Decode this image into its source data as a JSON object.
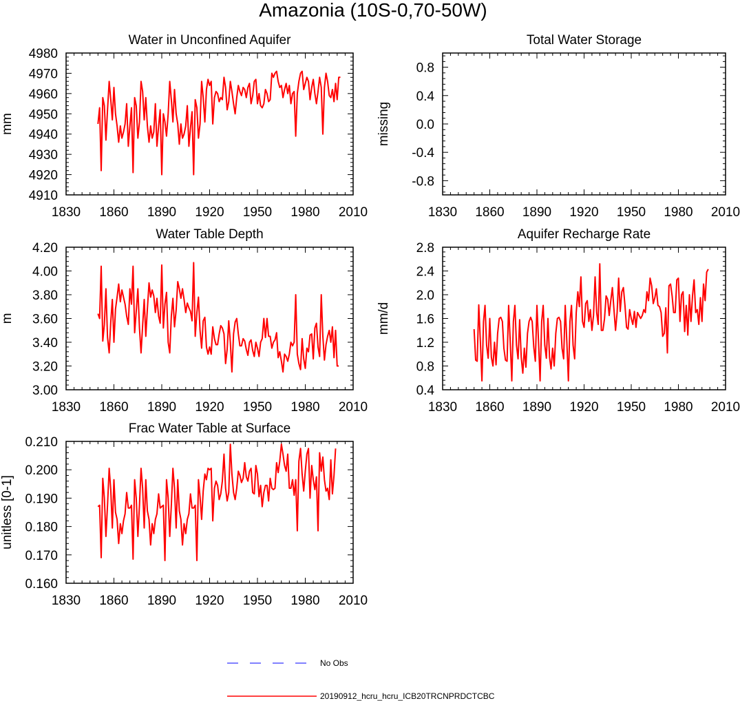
{
  "figure": {
    "title": "Amazonia (10S-0,70-50W)",
    "legend": [
      {
        "label": "No Obs",
        "color": "#0000ff",
        "style": "dashed"
      },
      {
        "label": "20190912_hcru_hcru_ICB20TRCNPRDCTCBC",
        "color": "#ff0000",
        "style": "solid"
      }
    ]
  },
  "chart_data": [
    {
      "type": "line",
      "title": "Water in Unconfined Aquifer",
      "ylabel": "mm",
      "xlim": [
        1830,
        2010
      ],
      "ylim": [
        4910,
        4980
      ],
      "xticks": [
        1830,
        1860,
        1890,
        1920,
        1950,
        1980,
        2010
      ],
      "xtick_labels": [
        "1830",
        "1860",
        "1890",
        "1920",
        "1950",
        "1980",
        "2010"
      ],
      "yticks": [
        4910,
        4920,
        4930,
        4940,
        4950,
        4960,
        4970,
        4980
      ],
      "ytick_labels": [
        "4910",
        "4920",
        "4930",
        "4940",
        "4950",
        "4960",
        "4970",
        "4980"
      ],
      "series": [
        {
          "name": "20190912_hcru_hcru_ICB20TRCNPRDCTCBC",
          "color": "#ff0000",
          "x_start": 1850,
          "values": [
            4945,
            4953,
            4922,
            4958,
            4954,
            4937,
            4952,
            4966,
            4957,
            4947,
            4963,
            4950,
            4944,
            4936,
            4944,
            4938,
            4941,
            4945,
            4955,
            4934,
            4944,
            4953,
            4921,
            4958,
            4954,
            4938,
            4946,
            4966,
            4961,
            4947,
            4958,
            4944,
            4936,
            4944,
            4938,
            4941,
            4955,
            4934,
            4944,
            4952,
            4920,
            4950,
            4946,
            4939,
            4950,
            4966,
            4957,
            4946,
            4962,
            4950,
            4945,
            4935,
            4945,
            4938,
            4940,
            4944,
            4954,
            4934,
            4943,
            4951,
            4920,
            4957,
            4953,
            4938,
            4945,
            4966,
            4958,
            4946,
            4962,
            4967,
            4964,
            4966,
            4945,
            4958,
            4961,
            4960,
            4956,
            4958,
            4957,
            4968,
            4963,
            4952,
            4956,
            4966,
            4961,
            4955,
            4950,
            4958,
            4964,
            4961,
            4959,
            4963,
            4962,
            4958,
            4963,
            4965,
            4955,
            4959,
            4966,
            4967,
            4955,
            4960,
            4954,
            4953,
            4955,
            4962,
            4960,
            4956,
            4957,
            4970,
            4968,
            4970,
            4971,
            4966,
            4963,
            4964,
            4958,
            4962,
            4965,
            4960,
            4964,
            4955,
            4960,
            4961,
            4939,
            4960,
            4966,
            4970,
            4971,
            4962,
            4965,
            4968,
            4966,
            4957,
            4963,
            4967,
            4960,
            4955,
            4961,
            4968,
            4963,
            4940,
            4963,
            4970,
            4966,
            4959,
            4958,
            4962,
            4956,
            4965,
            4957,
            4968,
            4968
          ]
        }
      ]
    },
    {
      "type": "line",
      "title": "Total Water Storage",
      "ylabel": "missing",
      "xlim": [
        1830,
        2010
      ],
      "ylim": [
        -1.0,
        1.0
      ],
      "xticks": [
        1830,
        1860,
        1890,
        1920,
        1950,
        1980,
        2010
      ],
      "xtick_labels": [
        "1830",
        "1860",
        "1890",
        "1920",
        "1950",
        "1980",
        "2010"
      ],
      "yticks": [
        -0.8,
        -0.4,
        0.0,
        0.4,
        0.8
      ],
      "ytick_labels": [
        "-0.8",
        "-0.4",
        "0.0",
        "0.4",
        "0.8"
      ],
      "series": []
    },
    {
      "type": "line",
      "title": "Water Table Depth",
      "ylabel": "m",
      "xlim": [
        1830,
        2010
      ],
      "ylim": [
        3.0,
        4.2
      ],
      "xticks": [
        1830,
        1860,
        1890,
        1920,
        1950,
        1980,
        2010
      ],
      "xtick_labels": [
        "1830",
        "1860",
        "1890",
        "1920",
        "1950",
        "1980",
        "2010"
      ],
      "yticks": [
        3.0,
        3.2,
        3.4,
        3.6,
        3.8,
        4.0,
        4.2
      ],
      "ytick_labels": [
        "3.00",
        "3.20",
        "3.40",
        "3.60",
        "3.80",
        "4.00",
        "4.20"
      ],
      "series": [
        {
          "name": "20190912_hcru_hcru_ICB20TRCNPRDCTCBC",
          "color": "#ff0000",
          "x_start": 1850,
          "values": [
            3.64,
            3.6,
            4.04,
            3.41,
            3.55,
            3.85,
            3.44,
            3.31,
            3.57,
            3.76,
            3.4,
            3.68,
            3.78,
            3.89,
            3.74,
            3.84,
            3.78,
            3.72,
            3.62,
            3.55,
            3.85,
            3.72,
            4.04,
            3.48,
            3.66,
            3.85,
            3.52,
            3.31,
            3.54,
            3.76,
            3.45,
            3.68,
            3.9,
            3.78,
            3.84,
            3.79,
            3.65,
            3.77,
            3.62,
            3.56,
            4.05,
            3.52,
            3.72,
            3.82,
            3.4,
            3.31,
            3.62,
            3.77,
            3.53,
            3.67,
            3.91,
            3.85,
            3.77,
            3.85,
            3.76,
            3.65,
            3.73,
            3.69,
            3.66,
            3.58,
            4.07,
            3.45,
            3.65,
            3.78,
            3.5,
            3.35,
            3.58,
            3.61,
            3.36,
            3.3,
            3.36,
            3.3,
            3.53,
            3.43,
            3.38,
            3.38,
            3.47,
            3.54,
            3.52,
            3.47,
            3.22,
            3.34,
            3.58,
            3.4,
            3.15,
            3.47,
            3.57,
            3.6,
            3.47,
            3.37,
            3.37,
            3.43,
            3.41,
            3.34,
            3.29,
            3.4,
            3.42,
            3.33,
            3.28,
            3.4,
            3.35,
            3.28,
            3.4,
            3.43,
            3.6,
            3.44,
            3.6,
            3.45,
            3.45,
            3.35,
            3.4,
            3.42,
            3.48,
            3.27,
            3.32,
            3.24,
            3.15,
            3.3,
            3.28,
            3.24,
            3.3,
            3.4,
            3.37,
            3.4,
            3.8,
            3.3,
            3.22,
            3.17,
            3.43,
            3.26,
            3.18,
            3.35,
            3.32,
            3.46,
            3.47,
            3.26,
            3.52,
            3.56,
            3.36,
            3.28,
            3.8,
            3.45,
            3.25,
            3.38,
            3.45,
            3.5,
            3.4,
            3.53,
            3.27,
            3.5,
            3.2,
            3.2
          ]
        }
      ]
    },
    {
      "type": "line",
      "title": "Aquifer Recharge Rate",
      "ylabel": "mm/d",
      "xlim": [
        1830,
        2010
      ],
      "ylim": [
        0.4,
        2.8
      ],
      "xticks": [
        1830,
        1860,
        1890,
        1920,
        1950,
        1980,
        2010
      ],
      "xtick_labels": [
        "1830",
        "1860",
        "1890",
        "1920",
        "1950",
        "1980",
        "2010"
      ],
      "yticks": [
        0.4,
        0.8,
        1.2,
        1.6,
        2.0,
        2.4,
        2.8
      ],
      "ytick_labels": [
        "0.4",
        "0.8",
        "1.2",
        "1.6",
        "2.0",
        "2.4",
        "2.8"
      ],
      "series": [
        {
          "name": "20190912_hcru_hcru_ICB20TRCNPRDCTCBC",
          "color": "#ff0000",
          "x_start": 1850,
          "values": [
            1.42,
            0.9,
            0.88,
            1.83,
            1.22,
            0.55,
            1.55,
            1.82,
            1.15,
            0.93,
            1.6,
            0.95,
            0.8,
            1.2,
            0.82,
            1.35,
            1.6,
            1.62,
            1.55,
            1.1,
            0.9,
            0.88,
            1.82,
            1.22,
            0.55,
            1.55,
            1.82,
            1.15,
            0.92,
            1.58,
            0.95,
            0.68,
            1.1,
            0.78,
            1.35,
            1.55,
            1.62,
            1.55,
            1.12,
            0.88,
            1.82,
            1.22,
            0.55,
            1.55,
            1.82,
            1.15,
            0.93,
            1.6,
            0.95,
            0.75,
            1.1,
            0.8,
            1.35,
            1.6,
            1.62,
            1.55,
            1.1,
            0.92,
            1.82,
            1.22,
            0.55,
            1.55,
            1.82,
            1.15,
            0.92,
            1.7,
            2.05,
            1.8,
            2.3,
            1.55,
            1.45,
            1.85,
            1.9,
            1.55,
            1.75,
            1.4,
            1.65,
            2.3,
            1.7,
            1.5,
            2.52,
            1.4,
            1.4,
            1.6,
            1.98,
            1.92,
            1.65,
            1.9,
            2.12,
            1.75,
            1.4,
            1.7,
            2.28,
            1.72,
            2.05,
            2.12,
            1.82,
            1.45,
            1.42,
            1.75,
            1.6,
            1.5,
            1.72,
            1.45,
            1.7,
            1.65,
            1.6,
            1.65,
            1.75,
            1.7,
            2.05,
            1.9,
            2.28,
            2.15,
            1.85,
            1.95,
            2.1,
            1.82,
            1.8,
            1.7,
            1.3,
            1.35,
            1.78,
            1.02,
            2.15,
            2.18,
            1.98,
            1.7,
            1.7,
            2.25,
            2.28,
            1.55,
            2.0,
            2.05,
            1.38,
            1.82,
            1.32,
            2.0,
            1.55,
            1.98,
            2.25,
            1.7,
            1.75,
            1.5,
            1.95,
            1.55,
            2.18,
            1.9,
            2.38,
            2.43
          ]
        }
      ]
    },
    {
      "type": "line",
      "title": "Frac Water Table at Surface",
      "ylabel": "unitless [0-1]",
      "xlim": [
        1830,
        2010
      ],
      "ylim": [
        0.16,
        0.21
      ],
      "xticks": [
        1830,
        1860,
        1890,
        1920,
        1950,
        1980,
        2010
      ],
      "xtick_labels": [
        "1830",
        "1860",
        "1890",
        "1920",
        "1950",
        "1980",
        "2010"
      ],
      "yticks": [
        0.16,
        0.17,
        0.18,
        0.19,
        0.2,
        0.21
      ],
      "ytick_labels": [
        "0.160",
        "0.170",
        "0.180",
        "0.190",
        "0.200",
        "0.210"
      ],
      "series": [
        {
          "name": "20190912_hcru_hcru_ICB20TRCNPRDCTCBC",
          "color": "#ff0000",
          "x_start": 1850,
          "values": [
            0.187,
            0.1875,
            0.169,
            0.197,
            0.19,
            0.1765,
            0.1875,
            0.2005,
            0.193,
            0.1795,
            0.1965,
            0.185,
            0.1825,
            0.174,
            0.181,
            0.1775,
            0.182,
            0.1845,
            0.192,
            0.1865,
            0.1865,
            0.1875,
            0.1685,
            0.1965,
            0.19,
            0.1765,
            0.1875,
            0.2005,
            0.1935,
            0.1795,
            0.1965,
            0.1855,
            0.1825,
            0.1735,
            0.181,
            0.1775,
            0.1825,
            0.1845,
            0.1915,
            0.1865,
            0.187,
            0.1875,
            0.168,
            0.1965,
            0.19,
            0.1765,
            0.1875,
            0.2005,
            0.1935,
            0.1795,
            0.1965,
            0.1855,
            0.1825,
            0.1735,
            0.181,
            0.1775,
            0.1825,
            0.1845,
            0.1915,
            0.1865,
            0.1865,
            0.1875,
            0.168,
            0.1965,
            0.1905,
            0.1825,
            0.1925,
            0.1985,
            0.1965,
            0.2005,
            0.2,
            0.2005,
            0.182,
            0.1935,
            0.196,
            0.1945,
            0.1895,
            0.1915,
            0.196,
            0.2055,
            0.1935,
            0.189,
            0.192,
            0.209,
            0.1985,
            0.192,
            0.1895,
            0.1935,
            0.1995,
            0.198,
            0.1955,
            0.197,
            0.2025,
            0.1975,
            0.196,
            0.1995,
            0.2005,
            0.192,
            0.1915,
            0.2015,
            0.1985,
            0.1905,
            0.1945,
            0.187,
            0.192,
            0.1945,
            0.1945,
            0.189,
            0.197,
            0.1935,
            0.193,
            0.1935,
            0.2025,
            0.199,
            0.203,
            0.209,
            0.2055,
            0.2015,
            0.1995,
            0.2055,
            0.1935,
            0.1935,
            0.1965,
            0.191,
            0.1965,
            0.1785,
            0.203,
            0.2075,
            0.1985,
            0.1925,
            0.1995,
            0.2055,
            0.2075,
            0.19,
            0.2015,
            0.1965,
            0.193,
            0.1975,
            0.1785,
            0.206,
            0.1995,
            0.2045,
            0.1965,
            0.1925,
            0.1935,
            0.1895,
            0.2035,
            0.1915,
            0.198,
            0.2075
          ]
        }
      ]
    }
  ]
}
